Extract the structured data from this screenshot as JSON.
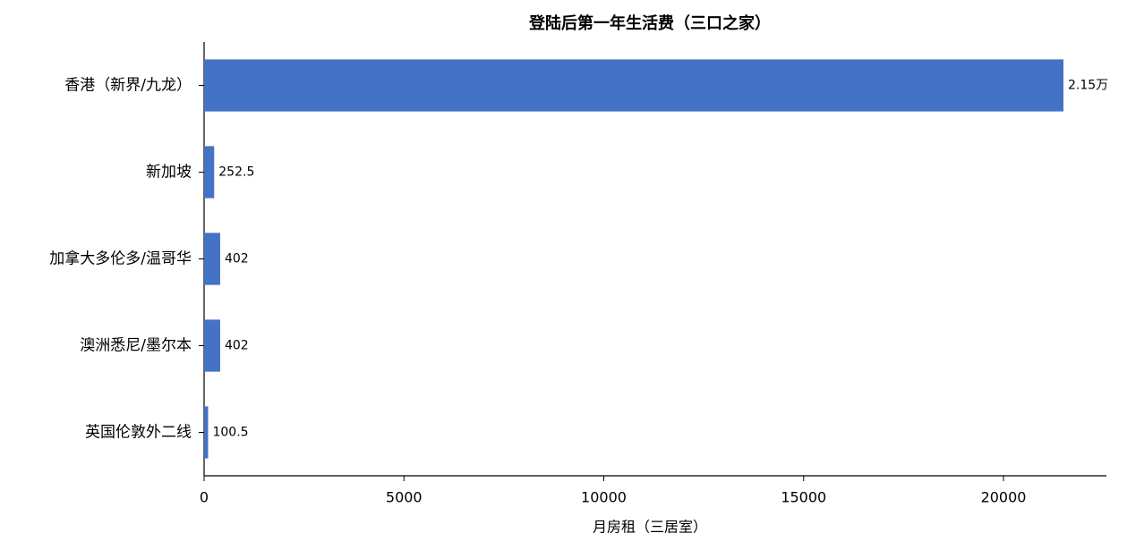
{
  "chart_data": {
    "type": "hbar",
    "title": "登陆后第一年生活费（三口之家）",
    "x_label": "月房租（三居室）",
    "categories": [
      "香港（新界/九龙）",
      "新加坡",
      "加拿大多伦多/温哥华",
      "澳洲悉尼/墨尔本",
      "英国伦敦外二线"
    ],
    "values": [
      21500,
      252.5,
      402,
      402,
      100.5
    ],
    "value_labels": [
      "2.15万",
      "252.5",
      "402",
      "402",
      "100.5"
    ],
    "color": "#4472c4",
    "xlim": [
      0,
      22575
    ],
    "xticks": [
      0,
      5000,
      10000,
      15000,
      20000
    ],
    "grid": false
  }
}
